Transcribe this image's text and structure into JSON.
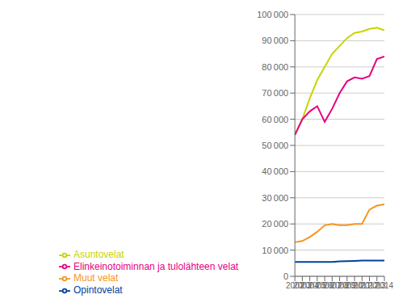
{
  "chart_data": {
    "type": "line",
    "x": [
      2002,
      2003,
      2004,
      2005,
      2006,
      2007,
      2008,
      2009,
      2010,
      2011,
      2012,
      2013,
      2014
    ],
    "series": [
      {
        "name": "Asuntovelat",
        "color": "#c8d400",
        "values": [
          54000,
          60000,
          68000,
          75000,
          80000,
          85000,
          88000,
          91000,
          93000,
          93500,
          94500,
          95000,
          94000
        ]
      },
      {
        "name": "Elinkeinotoiminnan ja tulolähteen velat",
        "color": "#e6007e",
        "values": [
          54000,
          60000,
          63000,
          65000,
          59000,
          64000,
          70000,
          74500,
          76000,
          75500,
          76500,
          83000,
          84000
        ]
      },
      {
        "name": "Muut velat",
        "color": "#f7941d",
        "values": [
          13000,
          13500,
          15000,
          17000,
          19500,
          20000,
          19500,
          19500,
          20000,
          20000,
          25500,
          27000,
          27500
        ]
      },
      {
        "name": "Opintovelat",
        "color": "#003f9e",
        "values": [
          5500,
          5500,
          5500,
          5500,
          5500,
          5500,
          5700,
          5800,
          5900,
          6000,
          6000,
          6000,
          6000
        ]
      }
    ],
    "xlim": [
      2002,
      2014
    ],
    "xticks": [
      2002,
      2003,
      2004,
      2005,
      2006,
      2007,
      2008,
      2009,
      2010,
      2011,
      2012,
      2013,
      2014
    ],
    "ylim": [
      0,
      100000
    ],
    "yticks": [
      0,
      {
        "value": 10000,
        "label": "10 000"
      },
      {
        "value": 20000,
        "label": "20 000"
      },
      {
        "value": 30000,
        "label": "30 000"
      },
      {
        "value": 40000,
        "label": "40 000"
      },
      {
        "value": 50000,
        "label": "50 000"
      },
      {
        "value": 60000,
        "label": "60 000"
      },
      {
        "value": 70000,
        "label": "70 000"
      },
      {
        "value": 80000,
        "label": "80 000"
      },
      {
        "value": 90000,
        "label": "90 000"
      },
      {
        "value": 100000,
        "label": "100 000"
      }
    ],
    "grid": true,
    "legend": "lower left"
  }
}
